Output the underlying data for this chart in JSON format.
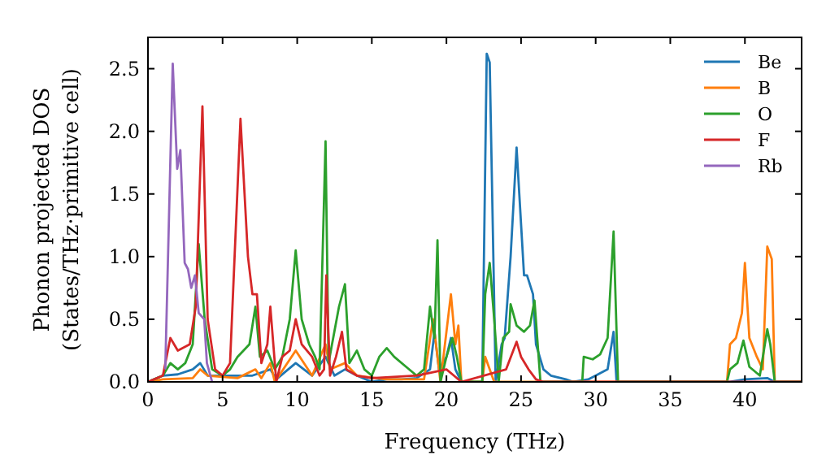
{
  "chart_data": {
    "type": "line",
    "xlabel": "Frequency (THz)",
    "ylabel": "Phonon projected DOS\n(States/THz·primitive cell)",
    "xlim": [
      0,
      43.8
    ],
    "ylim": [
      0,
      2.75
    ],
    "xticks": [
      0,
      5,
      10,
      15,
      20,
      25,
      30,
      35,
      40
    ],
    "yticks": [
      {
        "value": 0,
        "label": "0.0"
      },
      0.5,
      {
        "value": 1,
        "label": "1.0"
      },
      1.5,
      {
        "value": 2,
        "label": "2.0"
      },
      2.5
    ],
    "legend": "top right",
    "grid": false,
    "series": [
      {
        "name": "Be",
        "color": "#1f77b4",
        "x": [
          0,
          1,
          2,
          3,
          3.5,
          4,
          5,
          6,
          7,
          8.2,
          8.6,
          9.9,
          11,
          11.9,
          12.5,
          13.2,
          14,
          15,
          16,
          17,
          18,
          18.9,
          19.2,
          19.5,
          20,
          20.3,
          20.6,
          21,
          22.4,
          22.7,
          22.9,
          23.3,
          23.7,
          23.9,
          24.3,
          24.7,
          25.2,
          25.4,
          25.8,
          26,
          26.5,
          27,
          28,
          28.5,
          29.5,
          30,
          30.8,
          31.2,
          31.4,
          39,
          40,
          41.5,
          42,
          43.8
        ],
        "values": [
          0,
          0.05,
          0.06,
          0.1,
          0.15,
          0.05,
          0.05,
          0.05,
          0.05,
          0.1,
          0.02,
          0.15,
          0.05,
          0.2,
          0.05,
          0.1,
          0.05,
          0,
          0.02,
          0.02,
          0.03,
          0.1,
          0.4,
          0.1,
          0.2,
          0.35,
          0.1,
          0,
          0,
          2.62,
          2.55,
          0,
          0.3,
          0.35,
          1.0,
          1.87,
          0.85,
          0.85,
          0.7,
          0.3,
          0.1,
          0.05,
          0.02,
          0,
          0.02,
          0.05,
          0.1,
          0.4,
          0,
          0,
          0.02,
          0.03,
          0,
          0
        ]
      },
      {
        "name": "B",
        "color": "#ff7f0e",
        "x": [
          0,
          1,
          3,
          3.5,
          4,
          6,
          7.2,
          7.6,
          8.2,
          8.5,
          9.9,
          11,
          11.9,
          12.2,
          13.2,
          14,
          16,
          18.5,
          19.1,
          19.6,
          20.3,
          20.6,
          20.8,
          21,
          22.4,
          22.6,
          23.2,
          38.8,
          39,
          39.4,
          39.8,
          40,
          40.3,
          40.8,
          41.2,
          41.5,
          41.8,
          42,
          43.8
        ],
        "values": [
          0,
          0.02,
          0.03,
          0.1,
          0.05,
          0.03,
          0.1,
          0.03,
          0.15,
          0,
          0.25,
          0.05,
          0.3,
          0.1,
          0.15,
          0.05,
          0.02,
          0.02,
          0.5,
          0,
          0.7,
          0.3,
          0.45,
          0,
          0,
          0.2,
          0,
          0,
          0.3,
          0.35,
          0.55,
          0.95,
          0.35,
          0.2,
          0.1,
          1.08,
          0.98,
          0,
          0
        ]
      },
      {
        "name": "O",
        "color": "#2ca02c",
        "x": [
          0,
          1,
          1.5,
          2,
          2.5,
          3,
          3.4,
          3.8,
          4.3,
          5,
          5.5,
          6,
          6.8,
          7.2,
          7.5,
          8,
          8.5,
          9,
          9.5,
          9.9,
          10.3,
          10.8,
          11.2,
          11.5,
          11.9,
          12.1,
          12.8,
          13.2,
          13.5,
          14,
          14.5,
          15,
          15.5,
          16,
          16.5,
          17.3,
          18,
          18.5,
          18.9,
          19.2,
          19.4,
          19.6,
          20,
          20.4,
          20.7,
          21,
          22.4,
          22.6,
          22.9,
          23.2,
          23.5,
          23.8,
          24.2,
          24.3,
          24.7,
          25.2,
          25.6,
          25.9,
          26.3,
          29.1,
          29.2,
          29.8,
          30.3,
          30.8,
          31.2,
          31.5,
          38.8,
          39,
          39.5,
          39.9,
          40.3,
          41,
          41.5,
          41.7,
          42,
          43.8
        ],
        "values": [
          0,
          0.05,
          0.15,
          0.1,
          0.15,
          0.3,
          1.1,
          0.5,
          0.1,
          0.05,
          0.1,
          0.2,
          0.3,
          0.6,
          0.2,
          0.25,
          0.1,
          0.2,
          0.5,
          1.05,
          0.5,
          0.3,
          0.2,
          0.1,
          1.92,
          0.15,
          0.6,
          0.78,
          0.15,
          0.25,
          0.1,
          0.05,
          0.2,
          0.27,
          0.2,
          0.12,
          0.05,
          0.1,
          0.6,
          0.35,
          1.13,
          0,
          0.2,
          0.35,
          0.2,
          0,
          0,
          0.7,
          0.95,
          0.5,
          0,
          0.35,
          0.4,
          0.62,
          0.45,
          0.4,
          0.45,
          0.65,
          0,
          0,
          0.2,
          0.18,
          0.22,
          0.35,
          1.2,
          0,
          0,
          0.1,
          0.15,
          0.33,
          0.12,
          0.05,
          0.42,
          0.3,
          0,
          0
        ]
      },
      {
        "name": "F",
        "color": "#d62728",
        "x": [
          0,
          1,
          1.5,
          2,
          2.8,
          3.2,
          3.65,
          4,
          4.5,
          5,
          5.5,
          6.2,
          6.7,
          7.0,
          7.3,
          7.6,
          8.0,
          8.2,
          8.6,
          9.0,
          9.5,
          9.9,
          10.3,
          11,
          11.5,
          11.8,
          11.95,
          12.2,
          12.6,
          13.0,
          13.3,
          14,
          15,
          18,
          20,
          20.5,
          21,
          24,
          24.7,
          25,
          25.5,
          26,
          26.5,
          43.8
        ],
        "values": [
          0,
          0.05,
          0.35,
          0.25,
          0.3,
          0.6,
          2.2,
          0.5,
          0.1,
          0.05,
          0.15,
          2.1,
          1.0,
          0.7,
          0.7,
          0.15,
          0.3,
          0.6,
          0,
          0.2,
          0.25,
          0.5,
          0.3,
          0.2,
          0.05,
          0.1,
          0.85,
          0.05,
          0.2,
          0.4,
          0.1,
          0.05,
          0.03,
          0.05,
          0.1,
          0.05,
          0,
          0.1,
          0.32,
          0.2,
          0.1,
          0.02,
          0,
          0
        ]
      },
      {
        "name": "Rb",
        "color": "#9467bd",
        "x": [
          1.16,
          1.66,
          1.96,
          2.17,
          2.46,
          2.68,
          2.9,
          3.15,
          3.4,
          3.77,
          3.95,
          4.3
        ],
        "values": [
          0.1,
          2.54,
          1.7,
          1.85,
          0.95,
          0.9,
          0.75,
          0.85,
          0.55,
          0.5,
          0.15,
          0
        ]
      }
    ]
  }
}
